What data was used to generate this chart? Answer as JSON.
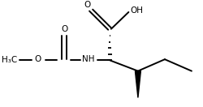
{
  "bg_color": "#ffffff",
  "line_color": "#000000",
  "line_width": 1.4,
  "figsize": [
    2.5,
    1.32
  ],
  "dpi": 100,
  "xlim": [
    -0.55,
    2.35
  ],
  "ylim": [
    -0.75,
    1.45
  ]
}
